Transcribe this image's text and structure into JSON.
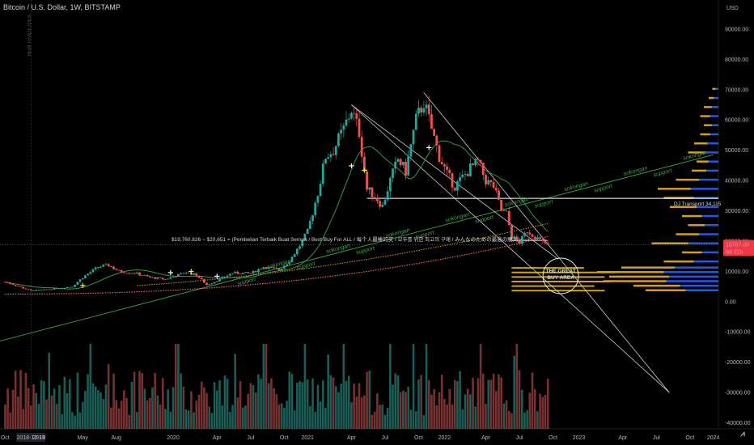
{
  "header": {
    "title": "Bitcoin / U.S. Dollar, 1W, BITSTAMP",
    "side_text": "NEW TRADE IDEA"
  },
  "colors": {
    "up": "#26a69a",
    "down": "#ef5350",
    "gold": "#d4a017",
    "blue": "#2962ff",
    "green_line": "#3fa34d",
    "price_tag": "#f23645"
  },
  "chart_data": {
    "type": "candlestick",
    "currency_label": "USD",
    "y_ticks": [
      90000,
      80000,
      70000,
      60000,
      50000,
      40000,
      30000,
      20000,
      10000,
      0,
      -10000,
      -20000,
      -30000,
      -40000
    ],
    "y_tick_labels": [
      "90000.00",
      "80000.00",
      "70000.00",
      "60000.00",
      "50000.00",
      "40000.00",
      "30000.00",
      "20000.00",
      "10000.00",
      "0.00",
      "-10000.00",
      "-20000.00",
      "-30000.00",
      "-40000.00"
    ],
    "ylim": [
      -42000,
      98000
    ],
    "x_ticks": [
      {
        "label": "Oct",
        "week": 0
      },
      {
        "label": "2018-12-10",
        "week": 10
      },
      {
        "label": "2019",
        "week": 13
      },
      {
        "label": "May",
        "week": 30
      },
      {
        "label": "Aug",
        "week": 43
      },
      {
        "label": "2020",
        "week": 65
      },
      {
        "label": "Apr",
        "week": 82
      },
      {
        "label": "Jul",
        "week": 95
      },
      {
        "label": "Oct",
        "week": 108
      },
      {
        "label": "2021",
        "week": 117
      },
      {
        "label": "Apr",
        "week": 134
      },
      {
        "label": "Jul",
        "week": 147
      },
      {
        "label": "Oct",
        "week": 160
      },
      {
        "label": "2022",
        "week": 170
      },
      {
        "label": "Apr",
        "week": 186
      },
      {
        "label": "Jul",
        "week": 199
      },
      {
        "label": "Oct",
        "week": 212
      },
      {
        "label": "2023",
        "week": 222
      },
      {
        "label": "Apr",
        "week": 239
      },
      {
        "label": "Jul",
        "week": 252
      },
      {
        "label": "Oct",
        "week": 265
      },
      {
        "label": "2024",
        "week": 274
      }
    ],
    "anchors": [
      [
        0,
        6500
      ],
      [
        10,
        3600
      ],
      [
        14,
        3800
      ],
      [
        26,
        5000
      ],
      [
        30,
        8000
      ],
      [
        36,
        11500
      ],
      [
        40,
        12000
      ],
      [
        44,
        10000
      ],
      [
        50,
        9500
      ],
      [
        56,
        8000
      ],
      [
        62,
        7400
      ],
      [
        66,
        8500
      ],
      [
        70,
        9700
      ],
      [
        74,
        8800
      ],
      [
        78,
        5500
      ],
      [
        82,
        7000
      ],
      [
        88,
        9500
      ],
      [
        95,
        9300
      ],
      [
        100,
        11500
      ],
      [
        106,
        10500
      ],
      [
        110,
        13500
      ],
      [
        114,
        18500
      ],
      [
        117,
        23000
      ],
      [
        121,
        36000
      ],
      [
        124,
        48000
      ],
      [
        127,
        50000
      ],
      [
        131,
        57000
      ],
      [
        134,
        63500
      ],
      [
        137,
        56000
      ],
      [
        140,
        37000
      ],
      [
        143,
        35000
      ],
      [
        146,
        31500
      ],
      [
        149,
        40000
      ],
      [
        152,
        47000
      ],
      [
        155,
        43000
      ],
      [
        159,
        60000
      ],
      [
        162,
        66000
      ],
      [
        165,
        57000
      ],
      [
        168,
        48000
      ],
      [
        171,
        42000
      ],
      [
        174,
        38000
      ],
      [
        177,
        41000
      ],
      [
        180,
        44000
      ],
      [
        183,
        46000
      ],
      [
        186,
        40000
      ],
      [
        189,
        38000
      ],
      [
        192,
        30000
      ],
      [
        194,
        29000
      ],
      [
        196,
        21500
      ],
      [
        199,
        19500
      ],
      [
        202,
        23500
      ],
      [
        205,
        21500
      ],
      [
        208,
        19500
      ],
      [
        210,
        18787
      ]
    ],
    "volume_scale": 1.0,
    "support_line": {
      "p1": [
        -2,
        -13000
      ],
      "p2": [
        274,
        48500
      ],
      "label": "support"
    },
    "horizontal_line": {
      "price": 34115,
      "from_week": 140,
      "label": "DJ Transport 34,115"
    },
    "buy_zone_line": {
      "price": 20200,
      "week": 210
    },
    "annotation": "$19,760.826 ~ $20,651 = (Pembelian Terbaik Buat Semua / Best Buy For ALL / 每个人最棒的买 / 모두를 위한 최고의 구매 / みんなのための最高の購入)---->",
    "support_labels": [
      "support",
      "sokongan",
      "support",
      "sokongan",
      "support",
      "sokongan",
      "support",
      "sokongan",
      "support",
      "sokongan",
      "support",
      "sokongan",
      "support",
      "sokongan",
      "support",
      "sokongan"
    ],
    "great_buy_area": {
      "label_line1": "THE GREAT",
      "label_line2": "BUY AREA",
      "center_week": 215,
      "center_price": 8500
    },
    "current_price": "18787.00",
    "countdown": "6d 22h",
    "plus_markers": [
      [
        30,
        4500
      ],
      [
        64,
        8800
      ],
      [
        72,
        9200
      ],
      [
        82,
        7500
      ],
      [
        134,
        44000
      ],
      [
        139,
        42500
      ],
      [
        164,
        50000
      ]
    ],
    "volume_profile": [
      [
        70000,
        0.05
      ],
      [
        67000,
        0.08
      ],
      [
        64000,
        0.12
      ],
      [
        61000,
        0.15
      ],
      [
        58000,
        0.12
      ],
      [
        55000,
        0.15
      ],
      [
        52000,
        0.2
      ],
      [
        49000,
        0.25
      ],
      [
        46000,
        0.18
      ],
      [
        43000,
        0.22
      ],
      [
        40000,
        0.35
      ],
      [
        37000,
        0.5
      ],
      [
        34000,
        0.45
      ],
      [
        31000,
        0.4
      ],
      [
        28000,
        0.3
      ],
      [
        25000,
        0.25
      ],
      [
        22000,
        0.35
      ],
      [
        19000,
        0.55
      ],
      [
        16000,
        0.3
      ],
      [
        13000,
        0.45
      ],
      [
        11000,
        0.8
      ],
      [
        9500,
        1.0
      ],
      [
        8000,
        0.9
      ],
      [
        6500,
        0.95
      ],
      [
        5000,
        0.7
      ],
      [
        3500,
        0.6
      ]
    ]
  }
}
